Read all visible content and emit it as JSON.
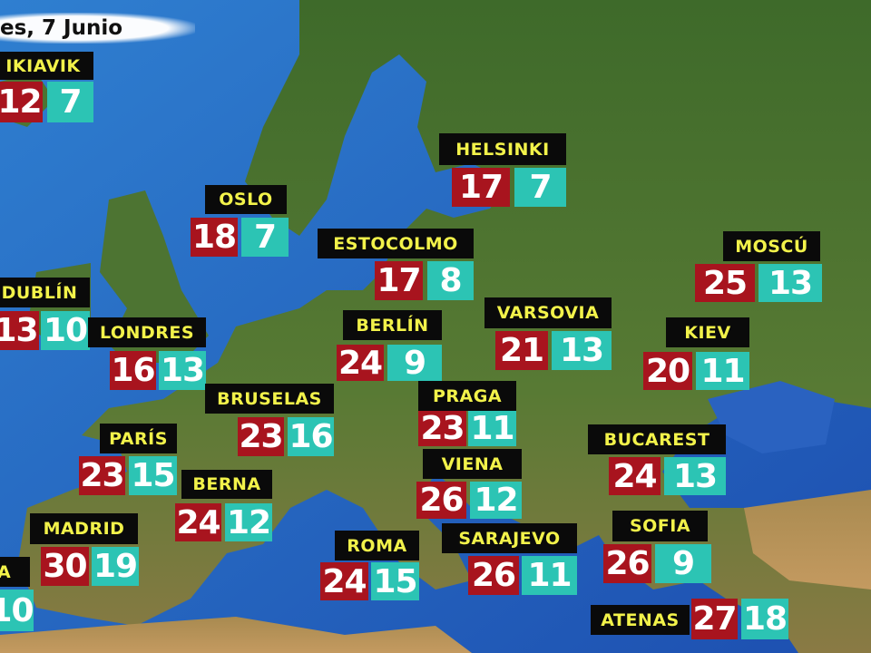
{
  "date_text": "es, 7 Junio",
  "colors": {
    "max_temp": "#a8141e",
    "min_temp": "#2cc4b4",
    "label_bg": "#0a0a0a",
    "label_text": "#f2f24a"
  },
  "cities": [
    {
      "name": "IKIAVIK",
      "max": "12",
      "min": "7"
    },
    {
      "name": "HELSINKI",
      "max": "17",
      "min": "7"
    },
    {
      "name": "OSLO",
      "max": "18",
      "min": "7"
    },
    {
      "name": "ESTOCOLMO",
      "max": "17",
      "min": "8"
    },
    {
      "name": "MOSCÚ",
      "max": "25",
      "min": "13"
    },
    {
      "name": "DUBLÍN",
      "max": "13",
      "min": "10"
    },
    {
      "name": "LONDRES",
      "max": "16",
      "min": "13"
    },
    {
      "name": "BERLÍN",
      "max": "24",
      "min": "9"
    },
    {
      "name": "VARSOVIA",
      "max": "21",
      "min": "13"
    },
    {
      "name": "KIEV",
      "max": "20",
      "min": "11"
    },
    {
      "name": "BRUSELAS",
      "max": "23",
      "min": "16"
    },
    {
      "name": "PRAGA",
      "max": "23",
      "min": "11"
    },
    {
      "name": "PARÍS",
      "max": "23",
      "min": "15"
    },
    {
      "name": "BUCAREST",
      "max": "24",
      "min": "13"
    },
    {
      "name": "VIENA",
      "max": "26",
      "min": "12"
    },
    {
      "name": "BERNA",
      "max": "24",
      "min": "12"
    },
    {
      "name": "SOFIA",
      "max": "26",
      "min": "9"
    },
    {
      "name": "MADRID",
      "max": "30",
      "min": "19"
    },
    {
      "name": "SARAJEVO",
      "max": "26",
      "min": "11"
    },
    {
      "name": "ROMA",
      "max": "24",
      "min": "15"
    },
    {
      "name": "DA",
      "min": "10"
    },
    {
      "name": "ATENAS",
      "max": "27",
      "min": "18"
    }
  ]
}
